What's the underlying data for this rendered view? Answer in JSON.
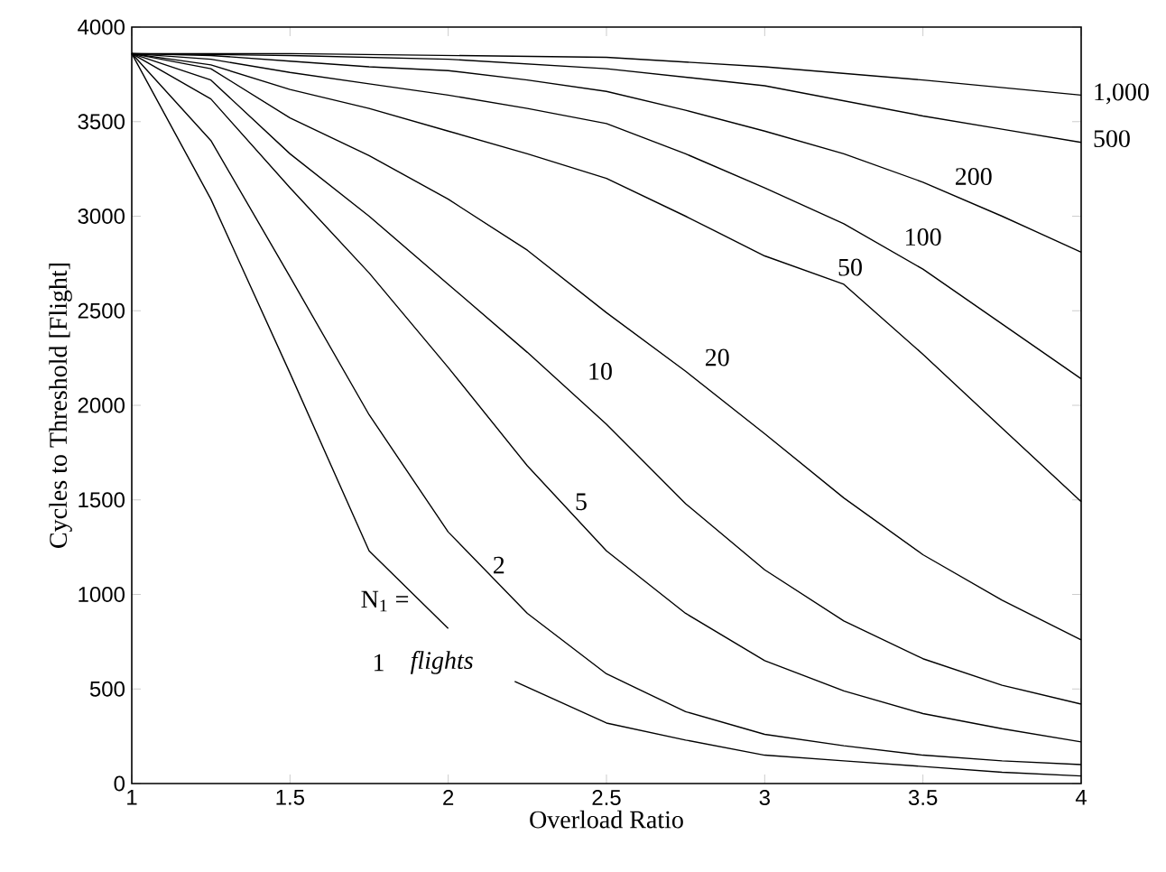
{
  "chart_data": {
    "type": "line",
    "xlabel": "Overload Ratio",
    "ylabel": "Cycles to Threshold  [Flight]",
    "xlim": [
      1,
      4
    ],
    "ylim": [
      0,
      4000
    ],
    "xticks": [
      1,
      1.5,
      2,
      2.5,
      3,
      3.5,
      4
    ],
    "yticks": [
      0,
      500,
      1000,
      1500,
      2000,
      2500,
      3000,
      3500,
      4000
    ],
    "grid": false,
    "legend": false,
    "marker": "none",
    "line_style": "solid",
    "annotations": [
      "N$_{1}$ =",
      "flights"
    ],
    "series": [
      {
        "name": "1",
        "color": "#000000",
        "x": [
          1,
          1.25,
          1.5,
          1.75,
          2,
          2.1,
          2.21,
          2.5,
          2.75,
          3,
          3.25,
          3.5,
          3.75,
          4
        ],
        "values": [
          3860,
          3090,
          2170,
          1230,
          820,
          null,
          540,
          320,
          230,
          150,
          120,
          90,
          60,
          40
        ]
      },
      {
        "name": "2",
        "color": "#000000",
        "x": [
          1,
          1.25,
          1.5,
          1.75,
          2,
          2.25,
          2.5,
          2.75,
          3,
          3.25,
          3.5,
          3.75,
          4
        ],
        "values": [
          3860,
          3400,
          2680,
          1950,
          1330,
          900,
          580,
          380,
          260,
          200,
          150,
          120,
          100
        ]
      },
      {
        "name": "5",
        "color": "#000000",
        "x": [
          1,
          1.25,
          1.5,
          1.75,
          2,
          2.25,
          2.5,
          2.75,
          3,
          3.25,
          3.5,
          3.75,
          4
        ],
        "values": [
          3860,
          3620,
          3150,
          2700,
          2200,
          1680,
          1230,
          900,
          650,
          490,
          370,
          290,
          220
        ]
      },
      {
        "name": "10",
        "color": "#000000",
        "x": [
          1,
          1.25,
          1.5,
          1.75,
          2,
          2.25,
          2.5,
          2.75,
          3,
          3.25,
          3.5,
          3.75,
          4
        ],
        "values": [
          3860,
          3720,
          3330,
          3000,
          2640,
          2280,
          1900,
          1480,
          1130,
          860,
          660,
          520,
          420
        ]
      },
      {
        "name": "20",
        "color": "#000000",
        "x": [
          1,
          1.25,
          1.5,
          1.75,
          2,
          2.25,
          2.5,
          2.75,
          3,
          3.25,
          3.5,
          3.75,
          4
        ],
        "values": [
          3860,
          3780,
          3520,
          3320,
          3090,
          2820,
          2490,
          2180,
          1850,
          1510,
          1210,
          970,
          760
        ]
      },
      {
        "name": "50",
        "color": "#000000",
        "x": [
          1,
          1.25,
          1.5,
          1.75,
          2,
          2.25,
          2.5,
          2.75,
          3,
          3.25,
          3.5,
          3.75,
          4
        ],
        "values": [
          3860,
          3800,
          3670,
          3570,
          3450,
          3330,
          3200,
          3000,
          2790,
          2640,
          2270,
          1880,
          1490
        ]
      },
      {
        "name": "100",
        "color": "#000000",
        "x": [
          1,
          1.25,
          1.5,
          1.75,
          2,
          2.25,
          2.5,
          2.75,
          3,
          3.25,
          3.5,
          3.75,
          4
        ],
        "values": [
          3860,
          3830,
          3760,
          3700,
          3640,
          3570,
          3490,
          3330,
          3150,
          2960,
          2720,
          2430,
          2140
        ]
      },
      {
        "name": "200",
        "color": "#000000",
        "x": [
          1,
          1.25,
          1.5,
          1.75,
          2,
          2.25,
          2.5,
          2.75,
          3,
          3.25,
          3.5,
          3.75,
          4
        ],
        "values": [
          3860,
          3850,
          3820,
          3790,
          3770,
          3720,
          3660,
          3560,
          3450,
          3330,
          3180,
          3000,
          2810
        ]
      },
      {
        "name": "500",
        "color": "#000000",
        "x": [
          1,
          1.5,
          2,
          2.5,
          3,
          3.5,
          3.75,
          4
        ],
        "values": [
          3860,
          3850,
          3830,
          3780,
          3690,
          3530,
          3460,
          3390
        ]
      },
      {
        "name": "1,000",
        "color": "#000000",
        "x": [
          1,
          1.5,
          2,
          2.5,
          3,
          3.5,
          4
        ],
        "values": [
          3860,
          3860,
          3850,
          3840,
          3790,
          3720,
          3640
        ]
      }
    ]
  }
}
